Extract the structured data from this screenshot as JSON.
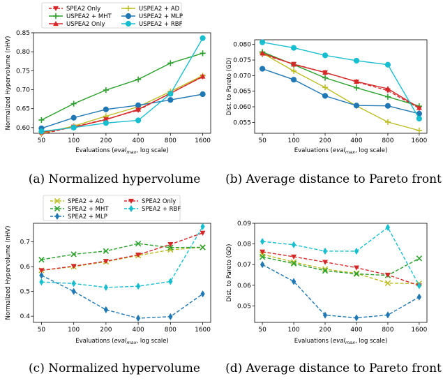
{
  "chart_data": [
    {
      "type": "line",
      "caption": "(a) Normalized hypervolume",
      "xlabel": "Evaluations (eval_max, log scale)",
      "ylabel": "Normalized Hypervolume (nHV)",
      "x": [
        50,
        100,
        200,
        400,
        800,
        1600
      ],
      "xticks": [
        "50",
        "100",
        "200",
        "400",
        "800",
        "1600"
      ],
      "xscale": "log",
      "ylim": [
        0.585,
        0.85
      ],
      "yticks": [
        "0.60",
        "0.65",
        "0.70",
        "0.75",
        "0.80",
        "0.85"
      ],
      "ytick_values": [
        0.6,
        0.65,
        0.7,
        0.75,
        0.8,
        0.85
      ],
      "legend_position": "above",
      "legend_entries": [
        "SPEA2 Only",
        "USPEA2 + AD",
        "USPEA2 + MHT",
        "USPEA2 + MLP",
        "USPEA2 Only",
        "USPEA2 + RBF"
      ],
      "series": [
        {
          "name": "SPEA2 Only",
          "color": "#d62728",
          "linestyle": "dashed",
          "marker": "triangle-down",
          "values": [
            0.583,
            0.602,
            0.622,
            0.646,
            0.691,
            0.734
          ]
        },
        {
          "name": "USPEA2 + AD",
          "color": "#bcbd22",
          "linestyle": "solid",
          "marker": "plus",
          "values": [
            0.585,
            0.604,
            0.63,
            0.655,
            0.695,
            0.737
          ]
        },
        {
          "name": "USPEA2 + MHT",
          "color": "#2ca02c",
          "linestyle": "solid",
          "marker": "plus",
          "values": [
            0.62,
            0.663,
            0.699,
            0.727,
            0.77,
            0.796
          ]
        },
        {
          "name": "USPEA2 + MLP",
          "color": "#1f77b4",
          "linestyle": "solid",
          "marker": "circle",
          "values": [
            0.598,
            0.626,
            0.648,
            0.659,
            0.673,
            0.688
          ]
        },
        {
          "name": "USPEA2 Only",
          "color": "#d62728",
          "linestyle": "solid",
          "marker": "triangle-up",
          "values": [
            0.588,
            0.601,
            0.621,
            0.648,
            0.69,
            0.735
          ]
        },
        {
          "name": "USPEA2 + RBF",
          "color": "#17becf",
          "linestyle": "solid",
          "marker": "circle",
          "values": [
            0.59,
            0.6,
            0.612,
            0.619,
            0.689,
            0.836
          ]
        }
      ]
    },
    {
      "type": "line",
      "caption": "(b) Average distance to Pareto front",
      "xlabel": "Evaluations (eval_max, log scale)",
      "ylabel": "Dist. to Pareto (GD)",
      "x": [
        50,
        100,
        200,
        400,
        800,
        1600
      ],
      "xticks": [
        "50",
        "100",
        "200",
        "400",
        "800",
        "1600"
      ],
      "xscale": "log",
      "ylim": [
        0.0515,
        0.0815
      ],
      "yticks": [
        "0.055",
        "0.060",
        "0.065",
        "0.070",
        "0.075",
        "0.080"
      ],
      "ytick_values": [
        0.055,
        0.06,
        0.065,
        0.07,
        0.075,
        0.08
      ],
      "series": [
        {
          "name": "SPEA2 Only",
          "color": "#d62728",
          "linestyle": "dashed",
          "marker": "triangle-down",
          "values": [
            0.0768,
            0.0737,
            0.071,
            0.068,
            0.0652,
            0.0595
          ]
        },
        {
          "name": "USPEA2 + AD",
          "color": "#bcbd22",
          "linestyle": "solid",
          "marker": "plus",
          "values": [
            0.0772,
            0.0715,
            0.0662,
            0.0603,
            0.0551,
            0.0524
          ]
        },
        {
          "name": "USPEA2 + MHT",
          "color": "#2ca02c",
          "linestyle": "solid",
          "marker": "plus",
          "values": [
            0.0776,
            0.0735,
            0.0693,
            0.0661,
            0.0632,
            0.0602
          ]
        },
        {
          "name": "USPEA2 + MLP",
          "color": "#1f77b4",
          "linestyle": "solid",
          "marker": "circle",
          "values": [
            0.0722,
            0.0687,
            0.0635,
            0.0604,
            0.0603,
            0.0578
          ]
        },
        {
          "name": "USPEA2 Only",
          "color": "#d62728",
          "linestyle": "solid",
          "marker": "triangle-up",
          "values": [
            0.0772,
            0.0736,
            0.071,
            0.0681,
            0.0658,
            0.0597
          ]
        },
        {
          "name": "USPEA2 + RBF",
          "color": "#17becf",
          "linestyle": "solid",
          "marker": "circle",
          "values": [
            0.0807,
            0.0789,
            0.0765,
            0.0748,
            0.0735,
            0.0562
          ]
        }
      ]
    },
    {
      "type": "line",
      "caption": "(c) Normalized hypervolume",
      "xlabel": "Evaluations (eval_max, log scale)",
      "ylabel": "Normalized Hypervolume (nHV)",
      "x": [
        50,
        100,
        200,
        400,
        800,
        1600
      ],
      "xticks": [
        "50",
        "100",
        "200",
        "400",
        "800",
        "1600"
      ],
      "xscale": "log",
      "ylim": [
        0.375,
        0.775
      ],
      "yticks": [
        "0.4",
        "0.5",
        "0.6",
        "0.7"
      ],
      "ytick_values": [
        0.4,
        0.5,
        0.6,
        0.7
      ],
      "legend_position": "above",
      "legend_entries": [
        "SPEA2 + AD",
        "SPEA2 Only",
        "SPEA2 + MHT",
        "SPEA2 + RBF",
        "SPEA2 + MLP"
      ],
      "series": [
        {
          "name": "SPEA2 + AD",
          "color": "#bcbd22",
          "linestyle": "dashed",
          "marker": "x",
          "values": [
            0.585,
            0.6,
            0.62,
            0.645,
            0.668,
            0.678
          ]
        },
        {
          "name": "SPEA2 + MHT",
          "color": "#2ca02c",
          "linestyle": "dashed",
          "marker": "x",
          "values": [
            0.628,
            0.65,
            0.663,
            0.693,
            0.677,
            0.678
          ]
        },
        {
          "name": "SPEA2 + MLP",
          "color": "#1f77b4",
          "linestyle": "dashed",
          "marker": "thin-diamond",
          "values": [
            0.565,
            0.5,
            0.426,
            0.392,
            0.398,
            0.49
          ]
        },
        {
          "name": "SPEA2 Only",
          "color": "#d62728",
          "linestyle": "dashed",
          "marker": "triangle-down",
          "values": [
            0.585,
            0.602,
            0.622,
            0.648,
            0.69,
            0.736
          ]
        },
        {
          "name": "SPEA2 + RBF",
          "color": "#17becf",
          "linestyle": "dashed",
          "marker": "thin-diamond",
          "values": [
            0.538,
            0.532,
            0.516,
            0.521,
            0.54,
            0.762
          ]
        }
      ]
    },
    {
      "type": "line",
      "caption": "(d) Average distance to Pareto front",
      "xlabel": "Evaluations (eval_max, log scale)",
      "ylabel": "Dist. to Pareto (GD)",
      "x": [
        50,
        100,
        200,
        400,
        800,
        1600
      ],
      "xticks": [
        "50",
        "100",
        "200",
        "400",
        "800",
        "1600"
      ],
      "xscale": "log",
      "ylim": [
        0.042,
        0.09
      ],
      "yticks": [
        "0.05",
        "0.06",
        "0.07",
        "0.08",
        "0.09"
      ],
      "ytick_values": [
        0.05,
        0.06,
        0.07,
        0.08,
        0.09
      ],
      "series": [
        {
          "name": "SPEA2 + AD",
          "color": "#bcbd22",
          "linestyle": "dashed",
          "marker": "x",
          "values": [
            0.075,
            0.0712,
            0.0678,
            0.0658,
            0.061,
            0.0608
          ]
        },
        {
          "name": "SPEA2 + MHT",
          "color": "#2ca02c",
          "linestyle": "dashed",
          "marker": "x",
          "values": [
            0.0737,
            0.0705,
            0.067,
            0.0655,
            0.0648,
            0.073
          ]
        },
        {
          "name": "SPEA2 + MLP",
          "color": "#1f77b4",
          "linestyle": "dashed",
          "marker": "thin-diamond",
          "values": [
            0.07,
            0.0618,
            0.0455,
            0.0442,
            0.0456,
            0.0543
          ]
        },
        {
          "name": "SPEA2 Only",
          "color": "#d62728",
          "linestyle": "dashed",
          "marker": "triangle-down",
          "values": [
            0.0762,
            0.0738,
            0.0712,
            0.0685,
            0.065,
            0.0598
          ]
        },
        {
          "name": "SPEA2 + RBF",
          "color": "#17becf",
          "linestyle": "dashed",
          "marker": "thin-diamond",
          "values": [
            0.0812,
            0.0796,
            0.0765,
            0.0765,
            0.088,
            0.0598
          ]
        }
      ]
    }
  ]
}
